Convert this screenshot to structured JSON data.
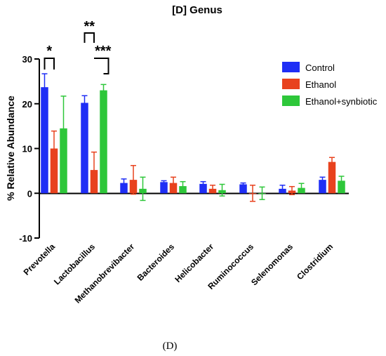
{
  "chart_data": {
    "type": "bar",
    "title": "[D] Genus",
    "caption": "(D)",
    "ylabel": "% Relative Abundance",
    "xlabel": "",
    "ylim": [
      -10,
      30
    ],
    "yticks": [
      "-10",
      "0",
      "10",
      "20",
      "30"
    ],
    "grid": false,
    "legend_position": "top-right",
    "categories": [
      "Prevotella",
      "Lactobacillus",
      "Methanobrevibacter",
      "Bacteroides",
      "Helicobacter",
      "Ruminococcus",
      "Selenomonas",
      "Clostridium"
    ],
    "series": [
      {
        "name": "Control",
        "color": "#1f2ef5",
        "values": [
          23.7,
          20.2,
          2.3,
          2.5,
          2.1,
          2.0,
          1.0,
          3.0
        ],
        "errors": [
          3.0,
          1.6,
          0.9,
          0.3,
          0.5,
          0.3,
          0.8,
          0.6
        ]
      },
      {
        "name": "Ethanol",
        "color": "#e8421e",
        "values": [
          10.0,
          5.2,
          3.0,
          2.3,
          1.0,
          0.0,
          0.6,
          7.0
        ],
        "errors": [
          3.9,
          4.0,
          3.2,
          1.3,
          0.8,
          1.8,
          0.9,
          1.0
        ]
      },
      {
        "name": "Ethanol+synbiotic",
        "color": "#2ec73a",
        "values": [
          14.5,
          23.0,
          1.0,
          1.6,
          0.7,
          0.0,
          1.2,
          2.8
        ],
        "errors": [
          7.2,
          1.3,
          2.6,
          1.0,
          1.3,
          1.4,
          1.0,
          1.0
        ]
      }
    ],
    "significance": [
      {
        "category": "Prevotella",
        "between": [
          "Control",
          "Ethanol"
        ],
        "label": "*"
      },
      {
        "category": "Lactobacillus",
        "between": [
          "Control",
          "Ethanol"
        ],
        "label": "**"
      },
      {
        "category": "Lactobacillus",
        "between": [
          "Ethanol",
          "Ethanol+synbiotic"
        ],
        "label": "***"
      }
    ]
  }
}
